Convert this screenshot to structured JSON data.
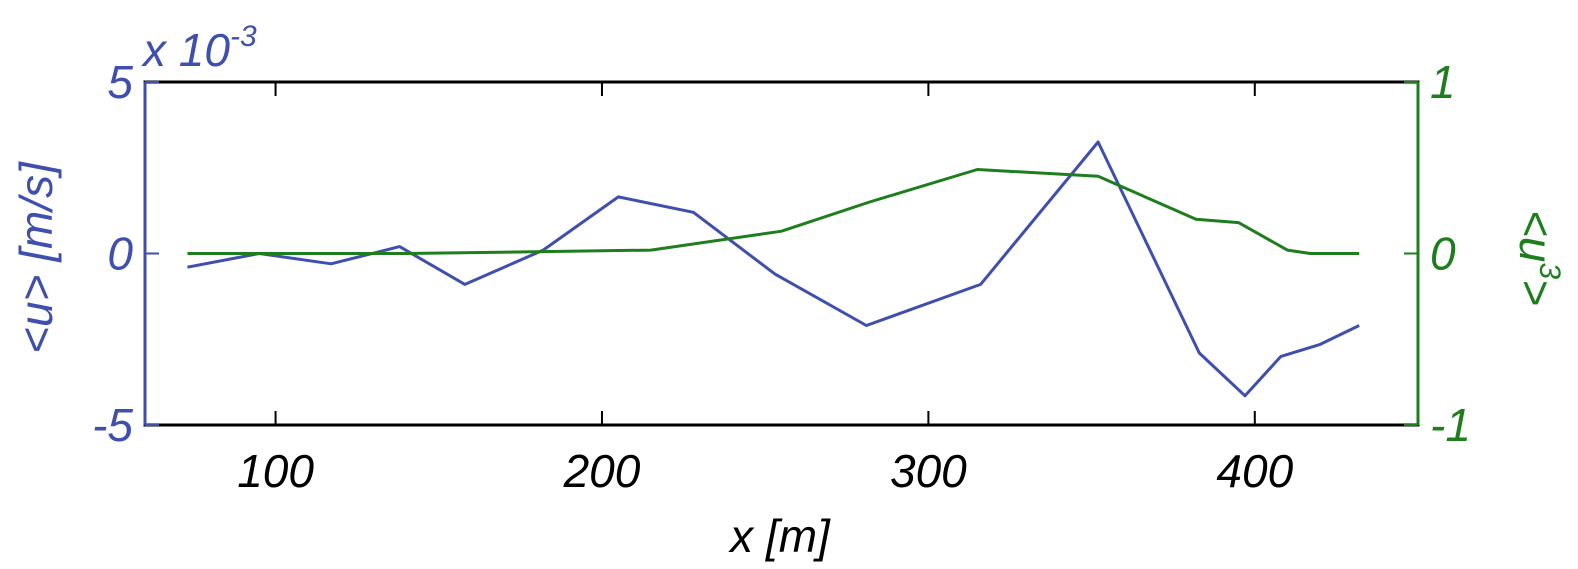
{
  "chart_data": {
    "type": "line",
    "title": "",
    "xlabel": "x [m]",
    "ylabel_left": "<u> [m/s]",
    "ylabel_right": {
      "base": "<u",
      "exponent": "3",
      "close": ">"
    },
    "left_axis_multiplier": {
      "base": "x 10",
      "exponent": "-3"
    },
    "xlim": [
      60,
      450
    ],
    "ylim_left": [
      -5,
      5
    ],
    "ylim_right": [
      -1,
      1
    ],
    "x_ticks": [
      100,
      200,
      300,
      400
    ],
    "x_tick_labels": [
      "100",
      "200",
      "300",
      "400"
    ],
    "y_left_ticks": [
      -5,
      0,
      5
    ],
    "y_left_tick_labels": [
      "-5",
      "0",
      "5"
    ],
    "y_right_ticks": [
      -1,
      0,
      1
    ],
    "y_right_tick_labels": [
      "-1",
      "0",
      "1"
    ],
    "grid": false,
    "colors": {
      "left": "#3F4FAE",
      "right": "#1E7E1E",
      "axis": "#000000"
    },
    "series": [
      {
        "axis": "left",
        "x": [
          73,
          95,
          117,
          138,
          158,
          182,
          205,
          228,
          253,
          281,
          316,
          352,
          383,
          397,
          408,
          420,
          432
        ],
        "y": [
          -0.4,
          0.0,
          -0.3,
          0.2,
          -0.9,
          0.1,
          1.65,
          1.2,
          -0.6,
          -2.1,
          -0.9,
          3.25,
          -2.9,
          -4.15,
          -3.0,
          -2.65,
          -2.1
        ]
      },
      {
        "axis": "right",
        "x": [
          73,
          140,
          215,
          255,
          282,
          315,
          352,
          382,
          395,
          410,
          417,
          432
        ],
        "y": [
          0.0,
          0.0,
          0.02,
          0.13,
          0.3,
          0.49,
          0.45,
          0.2,
          0.18,
          0.02,
          0.0,
          0.0
        ]
      }
    ]
  }
}
